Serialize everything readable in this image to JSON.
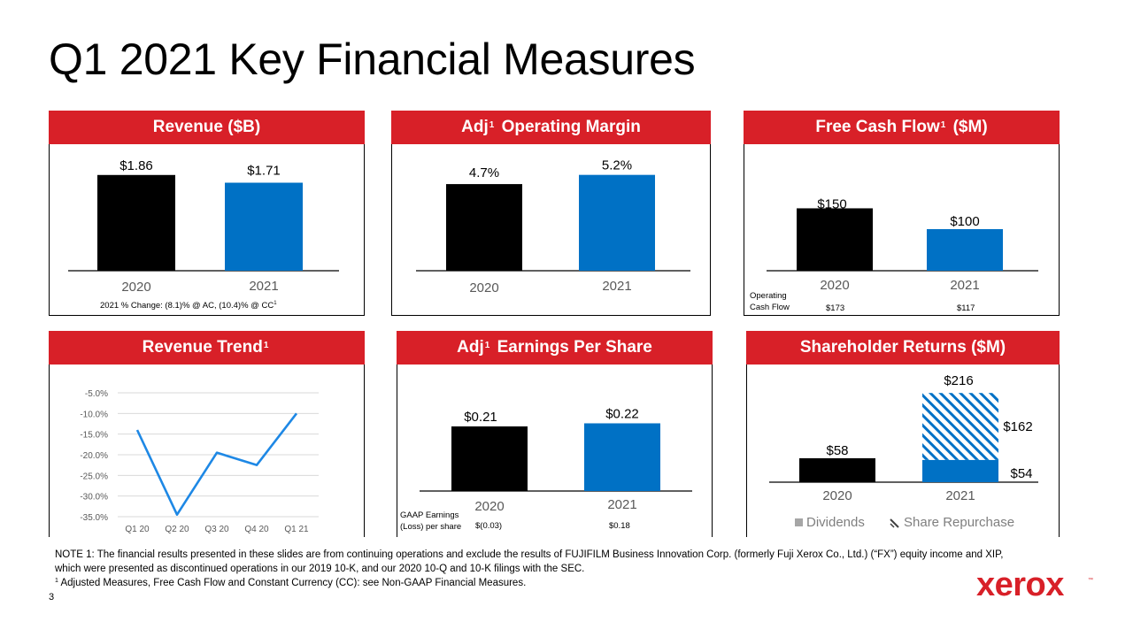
{
  "slide": {
    "title": "Q1 2021 Key Financial Measures",
    "page_number": "3",
    "brand": "xerox",
    "brand_tm": "™"
  },
  "colors": {
    "accent": "#d82028",
    "bar_2020": "#000000",
    "bar_2021": "#0071c5",
    "line": "#1e88e5",
    "grid": "#d9d9d9"
  },
  "panels": {
    "revenue": {
      "title": "Revenue ($B)",
      "footnote": "2021 % Change: (8.1)% @ AC, (10.4)% @ CC",
      "footnote_sup": "1"
    },
    "adj_op_margin": {
      "title_pre": "Adj",
      "title_sup": "1",
      "title_post": " Operating Margin"
    },
    "fcf": {
      "title_pre": "Free Cash Flow",
      "title_sup": "1",
      "title_post": " ($M)",
      "row_label_1": "Operating",
      "row_label_2": "Cash Flow",
      "op_cf_2020": "$173",
      "op_cf_2021": "$117"
    },
    "revenue_trend": {
      "title_pre": "Revenue Trend",
      "title_sup": "1"
    },
    "adj_eps": {
      "title_pre": "Adj",
      "title_sup": "1",
      "title_post": " Earnings Per Share",
      "row_label_1": "GAAP Earnings",
      "row_label_2": "(Loss) per share",
      "gaap_2020": "$(0.03)",
      "gaap_2021": "$0.18"
    },
    "shareholder": {
      "title": "Shareholder Returns ($M)",
      "legend_dividends": "Dividends",
      "legend_repurchase": "Share Repurchase"
    }
  },
  "chart_data": [
    {
      "id": "revenue",
      "type": "bar",
      "categories": [
        "2020",
        "2021"
      ],
      "values": [
        1.86,
        1.71
      ],
      "labels": [
        "$1.86",
        "$1.71"
      ],
      "ylim": [
        0,
        2.2
      ]
    },
    {
      "id": "adj_op_margin",
      "type": "bar",
      "categories": [
        "2020",
        "2021"
      ],
      "values": [
        4.7,
        5.2
      ],
      "labels": [
        "4.7%",
        "5.2%"
      ],
      "ylim": [
        0,
        7.2
      ]
    },
    {
      "id": "fcf",
      "type": "bar",
      "categories": [
        "2020",
        "2021"
      ],
      "values": [
        150,
        100
      ],
      "labels": [
        "$150",
        "$100"
      ],
      "ylim": [
        0,
        185
      ]
    },
    {
      "id": "revenue_trend",
      "type": "line",
      "categories": [
        "Q1 20",
        "Q2 20",
        "Q3 20",
        "Q4 20",
        "Q1 21"
      ],
      "values": [
        -14.0,
        -34.5,
        -19.5,
        -22.5,
        -10.0
      ],
      "yticks": [
        "-5.0%",
        "-10.0%",
        "-15.0%",
        "-20.0%",
        "-25.0%",
        "-30.0%",
        "-35.0%"
      ],
      "ytick_values": [
        -5,
        -10,
        -15,
        -20,
        -25,
        -30,
        -35
      ],
      "ylim": [
        -35,
        -5
      ],
      "grid": true
    },
    {
      "id": "adj_eps",
      "type": "bar",
      "categories": [
        "2020",
        "2021"
      ],
      "values": [
        0.21,
        0.22
      ],
      "labels": [
        "$0.21",
        "$0.22"
      ],
      "ylim": [
        0,
        0.46
      ]
    },
    {
      "id": "shareholder",
      "type": "bar",
      "stacked": true,
      "categories": [
        "2020",
        "2021"
      ],
      "series": [
        {
          "name": "Dividends",
          "values": [
            58,
            54
          ],
          "labels": [
            "$58",
            "$54"
          ]
        },
        {
          "name": "Share Repurchase",
          "values": [
            0,
            162
          ],
          "labels": [
            "",
            "$162"
          ]
        }
      ],
      "totals": [
        "",
        "$216"
      ],
      "ylim": [
        0,
        225
      ],
      "legend": "bottom"
    }
  ],
  "notes": {
    "note1_line1": "NOTE 1: The financial results presented in these slides are from continuing operations and exclude the results of FUJIFILM Business Innovation Corp. (formerly Fuji Xerox Co., Ltd.) (“FX”) equity income and XIP,",
    "note1_line2": "which were presented as discontinued operations in our 2019 10-K, and our 2020 10-Q and 10-K filings with the SEC.",
    "note2_sup": "1",
    "note2": " Adjusted Measures, Free Cash Flow and Constant Currency (CC): see Non-GAAP Financial Measures."
  }
}
